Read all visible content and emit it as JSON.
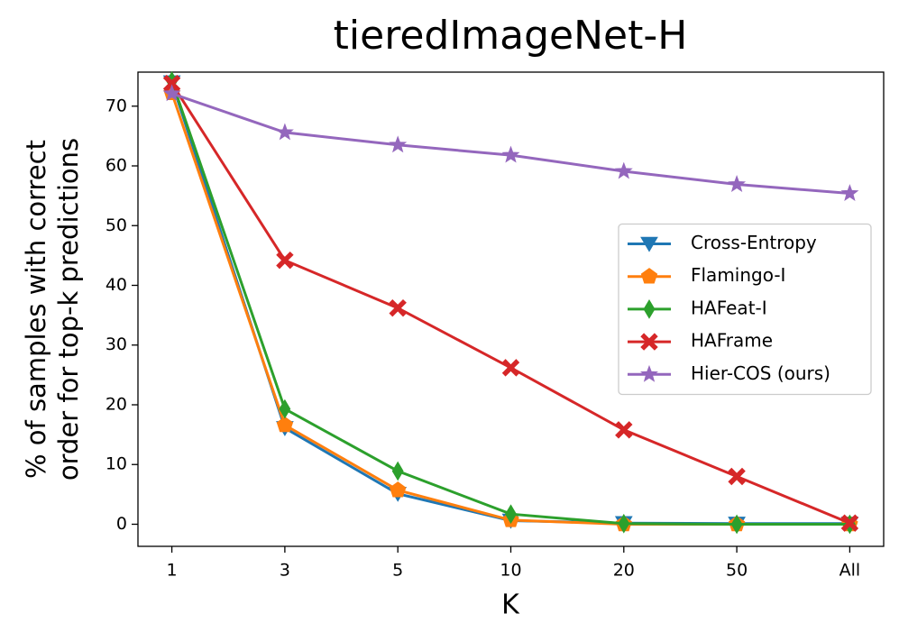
{
  "chart_data": {
    "type": "line",
    "title": "tieredImageNet-H",
    "xlabel": "K",
    "ylabel": [
      "% of samples with correct",
      "order for top-k predictions"
    ],
    "categories": [
      "1",
      "3",
      "5",
      "10",
      "20",
      "50",
      "All"
    ],
    "ylim": [
      -3.7,
      75.7
    ],
    "yticks": [
      0,
      10,
      20,
      30,
      40,
      50,
      60,
      70
    ],
    "grid": false,
    "legend": "center right",
    "series": [
      {
        "name": "Cross-Entropy",
        "color": "#1f77b4",
        "marker": "v",
        "values": [
          74,
          16.1,
          5.1,
          0.6,
          0.2,
          0.1,
          0.1
        ]
      },
      {
        "name": "Flamingo-I",
        "color": "#ff7f0e",
        "marker": "p",
        "values": [
          72.2,
          16.6,
          5.7,
          0.7,
          0,
          0,
          0
        ]
      },
      {
        "name": "HAFeat-I",
        "color": "#2ca02c",
        "marker": "d",
        "values": [
          74.2,
          19.3,
          8.9,
          1.7,
          0.1,
          0,
          0
        ]
      },
      {
        "name": "HAFrame",
        "color": "#d62728",
        "marker": "X",
        "values": [
          73.8,
          44.2,
          36.2,
          26.2,
          15.8,
          8,
          0.2
        ]
      },
      {
        "name": "Hier-COS (ours)",
        "color": "#9467bd",
        "marker": "*",
        "values": [
          72.1,
          65.6,
          63.5,
          61.8,
          59.1,
          56.9,
          55.4
        ]
      }
    ]
  }
}
